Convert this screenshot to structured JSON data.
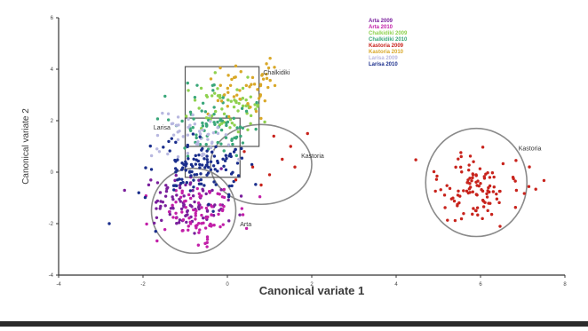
{
  "chart_data": {
    "type": "scatter",
    "xlabel": "Canonical variate 1",
    "ylabel": "Canonical variate 2",
    "xlim": [
      -4,
      8
    ],
    "ylim": [
      -4,
      6
    ],
    "xticks": [
      "-4",
      "-2",
      "0",
      "2",
      "4",
      "6",
      "8"
    ],
    "yticks": [
      "-4",
      "-2",
      "0",
      "2",
      "4",
      "6"
    ],
    "grid": false,
    "legend_position": "top-right",
    "series": [
      {
        "name": "Arta 2009",
        "color": "#7a1f9c",
        "center": [
          -1.0,
          -1.2
        ],
        "spread": [
          0.55,
          0.55
        ],
        "count": 95
      },
      {
        "name": "Arta 2010",
        "color": "#c21fa8",
        "center": [
          -0.7,
          -1.6
        ],
        "spread": [
          0.5,
          0.5
        ],
        "count": 85
      },
      {
        "name": "Chalkidiki 2009",
        "color": "#8fd14f",
        "center": [
          0.0,
          2.6
        ],
        "spread": [
          0.45,
          0.55
        ],
        "count": 60
      },
      {
        "name": "Chalkidiki 2010",
        "color": "#3aa77a",
        "center": [
          -0.4,
          1.8
        ],
        "spread": [
          0.5,
          0.6
        ],
        "count": 75
      },
      {
        "name": "Kastoria 2009",
        "color": "#c8231c",
        "center": [
          5.9,
          -0.7
        ],
        "spread": [
          0.55,
          0.7
        ],
        "count": 110
      },
      {
        "name": "Kastoria 2010",
        "color": "#d9a829",
        "center": [
          0.5,
          3.3
        ],
        "spread": [
          0.45,
          0.5
        ],
        "count": 50
      },
      {
        "name": "Larisa 2009",
        "color": "#b8b8e0",
        "center": [
          -0.8,
          1.5
        ],
        "spread": [
          0.45,
          0.5
        ],
        "count": 50
      },
      {
        "name": "Larisa 2010",
        "color": "#1a2e8c",
        "center": [
          -0.7,
          0.2
        ],
        "spread": [
          0.55,
          0.6
        ],
        "count": 115
      }
    ],
    "extra_points": [
      {
        "series": "Kastoria 2009",
        "points": [
          [
            0.6,
            0.2
          ],
          [
            1.0,
            -0.1
          ],
          [
            1.3,
            0.5
          ],
          [
            0.8,
            -0.5
          ],
          [
            1.5,
            1.0
          ],
          [
            0.4,
            0.8
          ],
          [
            1.1,
            1.4
          ],
          [
            1.9,
            1.5
          ],
          [
            0.2,
            -0.3
          ],
          [
            1.6,
            0.2
          ]
        ]
      },
      {
        "series": "Larisa 2010",
        "points": [
          [
            -2.8,
            -2.0
          ],
          [
            -1.7,
            -2.3
          ],
          [
            -2.1,
            -0.8
          ]
        ]
      }
    ],
    "annotations": [
      {
        "text": "Chalkidiki",
        "x": 0.85,
        "y": 3.8
      },
      {
        "text": "Larisa",
        "x": -1.75,
        "y": 1.65
      },
      {
        "text": "Kastoria",
        "x": 1.75,
        "y": 0.55
      },
      {
        "text": "Arta",
        "x": 0.3,
        "y": -2.1
      },
      {
        "text": "Kastoria",
        "x": 6.9,
        "y": 0.85
      }
    ],
    "ellipses": [
      {
        "label": "Arta",
        "cx": -0.8,
        "cy": -1.5,
        "rx": 1.0,
        "ry": 1.65
      },
      {
        "label": "Kastoria",
        "cx": 0.8,
        "cy": 0.3,
        "rx": 1.2,
        "ry": 1.55
      },
      {
        "label": "Kastoria",
        "cx": 5.9,
        "cy": -0.4,
        "rx": 1.2,
        "ry": 2.1
      }
    ],
    "boxes": [
      {
        "label": "Chalkidiki",
        "x0": -1.0,
        "x1": 0.75,
        "y0": 1.0,
        "y1": 4.1
      },
      {
        "label": "Larisa",
        "x0": -1.0,
        "x1": 0.3,
        "y0": -0.2,
        "y1": 2.1
      }
    ]
  }
}
